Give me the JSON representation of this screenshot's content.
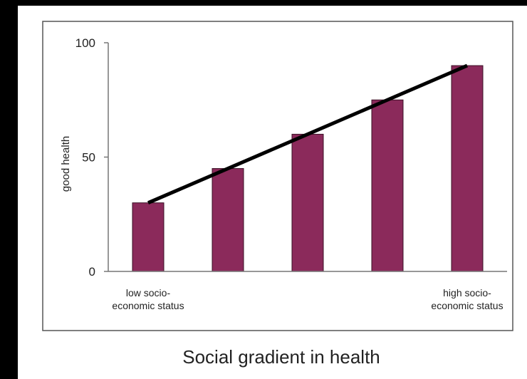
{
  "chart_data": {
    "type": "bar",
    "title": "Social gradient in health",
    "y_label": "good health",
    "categories": [
      "low socio-\neconomic status",
      null,
      null,
      null,
      "high socio-\neconomic status"
    ],
    "values": [
      30,
      45,
      60,
      75,
      90
    ],
    "color": "#8b2a5b",
    "trend_line": true,
    "ylim": [
      0,
      100
    ],
    "yticks": [
      0,
      50,
      100
    ]
  }
}
